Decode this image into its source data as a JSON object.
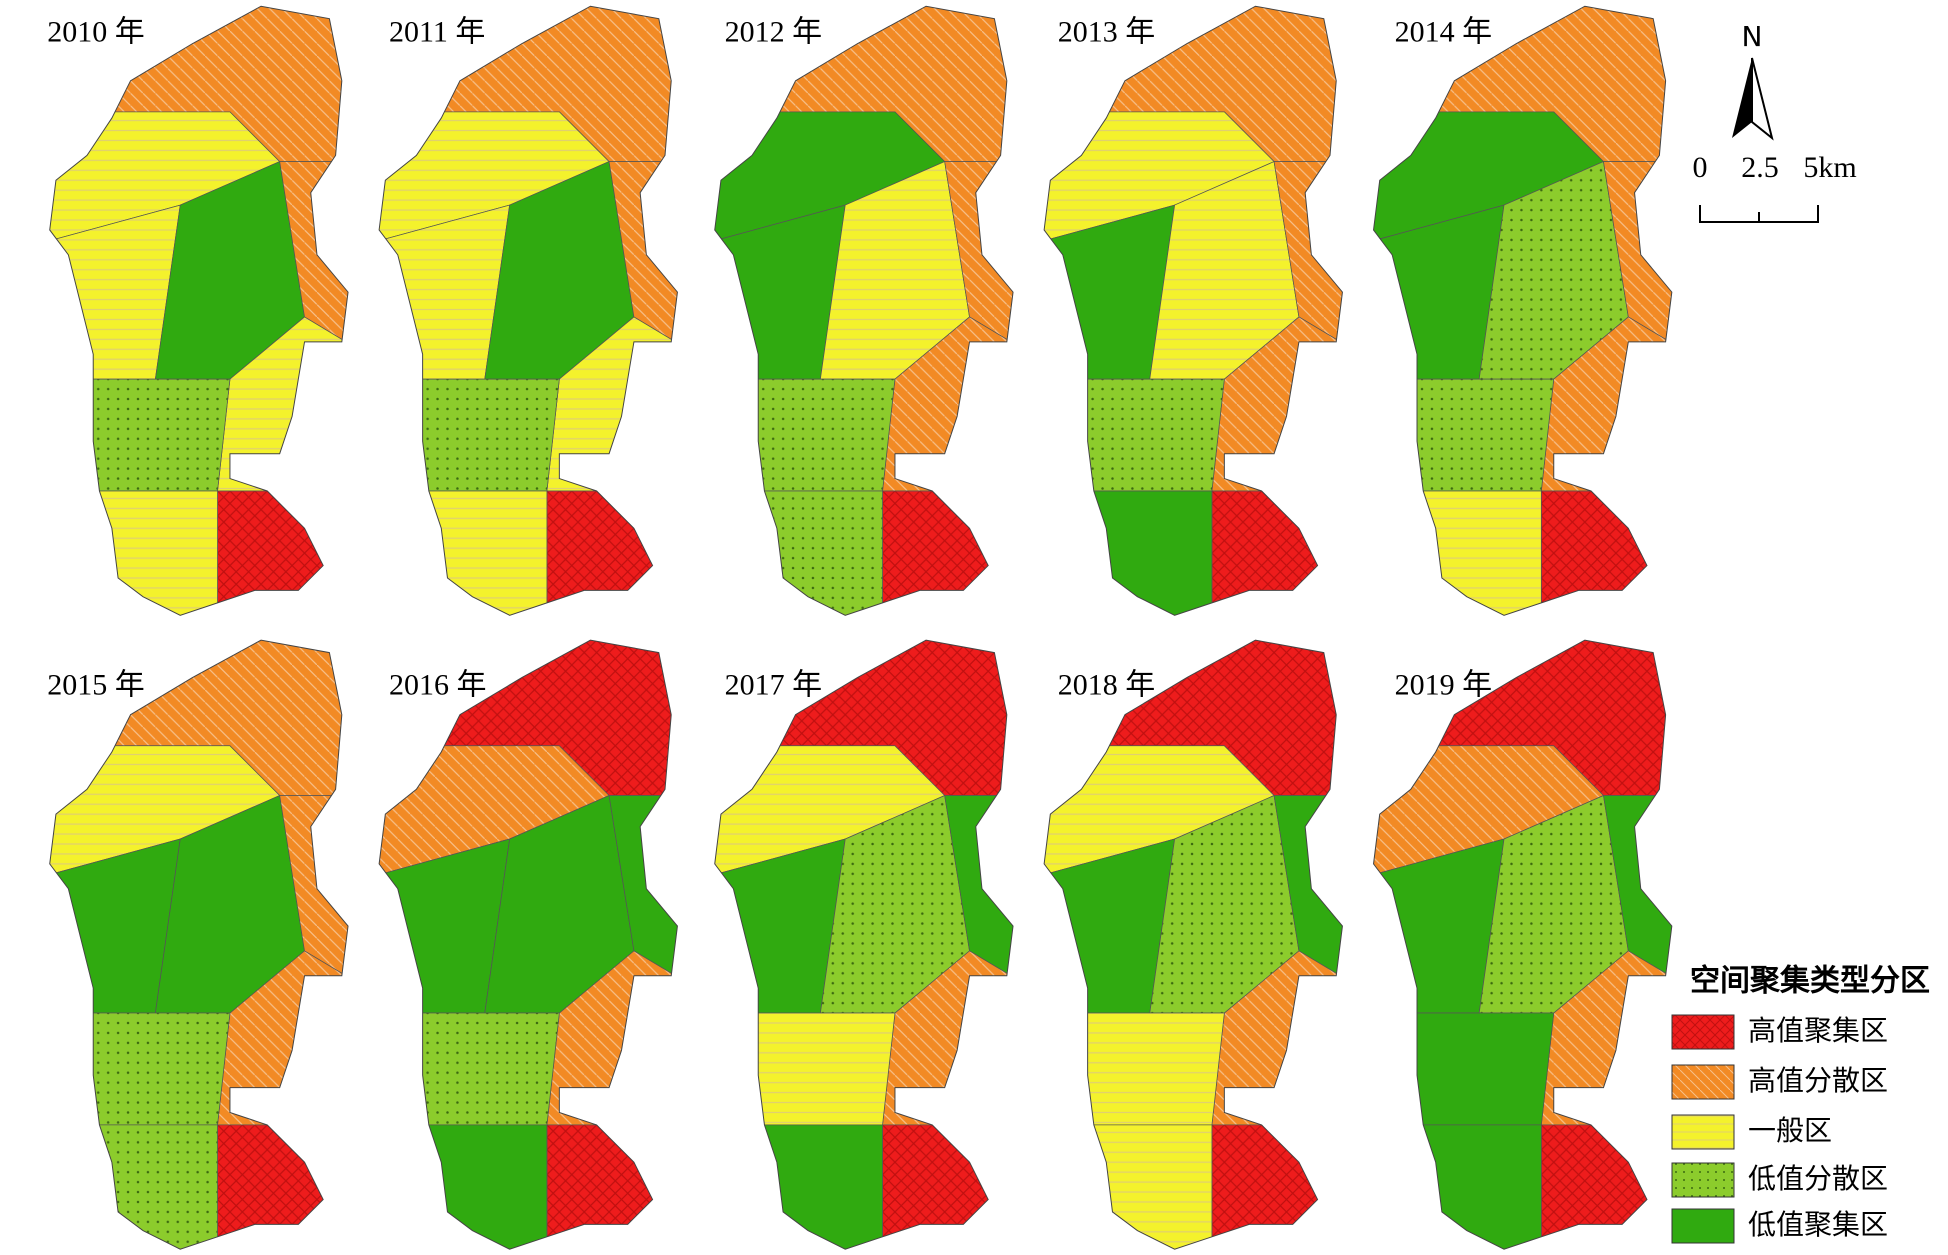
{
  "maps": [
    {
      "year_label": "2010 年"
    },
    {
      "year_label": "2011 年"
    },
    {
      "year_label": "2012 年"
    },
    {
      "year_label": "2013 年"
    },
    {
      "year_label": "2014 年"
    },
    {
      "year_label": "2015 年"
    },
    {
      "year_label": "2016 年"
    },
    {
      "year_label": "2017 年"
    },
    {
      "year_label": "2018 年"
    },
    {
      "year_label": "2019 年"
    }
  ],
  "north": "N",
  "scale_bar": {
    "labels": [
      "0",
      "2.5",
      "5km"
    ]
  },
  "legend": {
    "title": "空间聚集类型分区",
    "items": [
      "高值聚集区",
      "高值分散区",
      "一般区",
      "低值分散区",
      "低值聚集区"
    ]
  }
}
